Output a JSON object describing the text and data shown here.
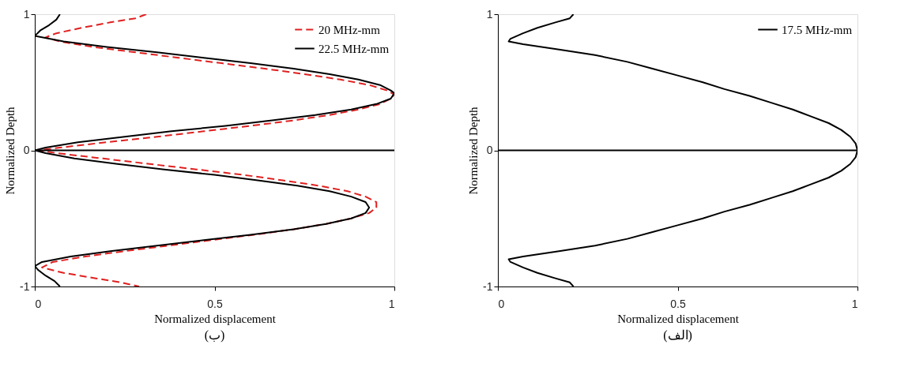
{
  "chart_data": [
    {
      "type": "line",
      "title": "(ب)",
      "xlabel": "Normalized displacement",
      "ylabel": "Normalized Depth",
      "xlim": [
        0,
        1
      ],
      "xticks": [
        0,
        0.5,
        1
      ],
      "ylim": [
        -1,
        1
      ],
      "yticks": [
        -1,
        0,
        1
      ],
      "grid": false,
      "legend": "top right",
      "ref_lines": [
        {
          "axis": "y",
          "value": 0,
          "label": null,
          "color": "#000000"
        }
      ],
      "series": [
        {
          "name": "20 MHz-mm",
          "color": "#e02020",
          "line_style": "dashed",
          "values": [
            1,
            0.97,
            0.94,
            0.9,
            0.86,
            0.83,
            0.8,
            0.76,
            0.72,
            0.68,
            0.64,
            0.6,
            0.56,
            0.52,
            0.48,
            0.44,
            0.41,
            0.38,
            0.34,
            0.3,
            0.26,
            0.22,
            0.18,
            0.14,
            0.1,
            0.06,
            0.02,
            0,
            -0.02,
            -0.06,
            -0.1,
            -0.14,
            -0.18,
            -0.22,
            -0.26,
            -0.3,
            -0.34,
            -0.38,
            -0.42,
            -0.46,
            -0.5,
            -0.54,
            -0.58,
            -0.62,
            -0.66,
            -0.7,
            -0.74,
            -0.78,
            -0.82,
            -0.86,
            -0.9,
            -0.94,
            -0.97,
            -1
          ],
          "x": [
            0.31,
            0.28,
            0.21,
            0.13,
            0.06,
            0.03,
            0.07,
            0.16,
            0.28,
            0.4,
            0.52,
            0.64,
            0.75,
            0.85,
            0.93,
            0.98,
            1.0,
            0.99,
            0.96,
            0.9,
            0.82,
            0.72,
            0.6,
            0.47,
            0.34,
            0.2,
            0.07,
            0.01,
            0.06,
            0.19,
            0.32,
            0.45,
            0.58,
            0.69,
            0.79,
            0.87,
            0.92,
            0.95,
            0.95,
            0.93,
            0.88,
            0.81,
            0.72,
            0.61,
            0.49,
            0.37,
            0.25,
            0.14,
            0.05,
            0.02,
            0.08,
            0.17,
            0.24,
            0.29
          ]
        },
        {
          "name": "22.5 MHz-mm",
          "color": "#000000",
          "line_style": "solid",
          "values": [
            1,
            0.96,
            0.92,
            0.88,
            0.84,
            0.8,
            0.76,
            0.72,
            0.68,
            0.64,
            0.6,
            0.56,
            0.52,
            0.48,
            0.44,
            0.42,
            0.38,
            0.34,
            0.3,
            0.26,
            0.22,
            0.18,
            0.14,
            0.1,
            0.06,
            0.02,
            0,
            -0.02,
            -0.06,
            -0.1,
            -0.14,
            -0.18,
            -0.22,
            -0.26,
            -0.3,
            -0.34,
            -0.38,
            -0.42,
            -0.46,
            -0.5,
            -0.54,
            -0.58,
            -0.62,
            -0.66,
            -0.7,
            -0.74,
            -0.78,
            -0.82,
            -0.85,
            -0.88,
            -0.92,
            -0.96,
            -1
          ],
          "x": [
            0.07,
            0.06,
            0.04,
            0.015,
            0,
            0.08,
            0.2,
            0.34,
            0.47,
            0.6,
            0.72,
            0.82,
            0.9,
            0.96,
            0.99,
            1.0,
            0.99,
            0.95,
            0.88,
            0.78,
            0.66,
            0.53,
            0.38,
            0.25,
            0.12,
            0.03,
            0,
            0.03,
            0.11,
            0.23,
            0.36,
            0.5,
            0.62,
            0.73,
            0.82,
            0.88,
            0.92,
            0.93,
            0.92,
            0.88,
            0.81,
            0.72,
            0.6,
            0.47,
            0.34,
            0.21,
            0.1,
            0.02,
            0,
            0.01,
            0.03,
            0.055,
            0.07
          ]
        }
      ]
    },
    {
      "type": "line",
      "title": "(الف)",
      "xlabel": "Normalized displacement",
      "ylabel": "Normalized Depth",
      "xlim": [
        0,
        1
      ],
      "xticks": [
        0,
        0.5,
        1
      ],
      "ylim": [
        -1,
        1
      ],
      "yticks": [
        -1,
        0,
        1
      ],
      "grid": false,
      "legend": "top right",
      "ref_lines": [
        {
          "axis": "y",
          "value": 0,
          "label": null,
          "color": "#000000"
        }
      ],
      "series": [
        {
          "name": "17.5 MHz-mm",
          "color": "#000000",
          "line_style": "solid",
          "values": [
            1,
            0.97,
            0.94,
            0.9,
            0.86,
            0.82,
            0.8,
            0.78,
            0.74,
            0.7,
            0.65,
            0.6,
            0.55,
            0.5,
            0.45,
            0.4,
            0.35,
            0.3,
            0.25,
            0.2,
            0.15,
            0.1,
            0.05,
            0,
            -0.05,
            -0.1,
            -0.15,
            -0.2,
            -0.25,
            -0.3,
            -0.35,
            -0.4,
            -0.45,
            -0.5,
            -0.55,
            -0.6,
            -0.65,
            -0.7,
            -0.74,
            -0.78,
            -0.8,
            -0.82,
            -0.86,
            -0.9,
            -0.94,
            -0.97,
            -1
          ],
          "x": [
            0.21,
            0.2,
            0.16,
            0.11,
            0.07,
            0.035,
            0.03,
            0.07,
            0.17,
            0.27,
            0.36,
            0.43,
            0.5,
            0.57,
            0.63,
            0.7,
            0.76,
            0.82,
            0.87,
            0.92,
            0.955,
            0.98,
            0.995,
            1.0,
            0.995,
            0.98,
            0.955,
            0.92,
            0.87,
            0.82,
            0.76,
            0.7,
            0.63,
            0.57,
            0.5,
            0.43,
            0.36,
            0.27,
            0.17,
            0.07,
            0.03,
            0.035,
            0.07,
            0.11,
            0.16,
            0.2,
            0.21
          ]
        }
      ]
    }
  ]
}
